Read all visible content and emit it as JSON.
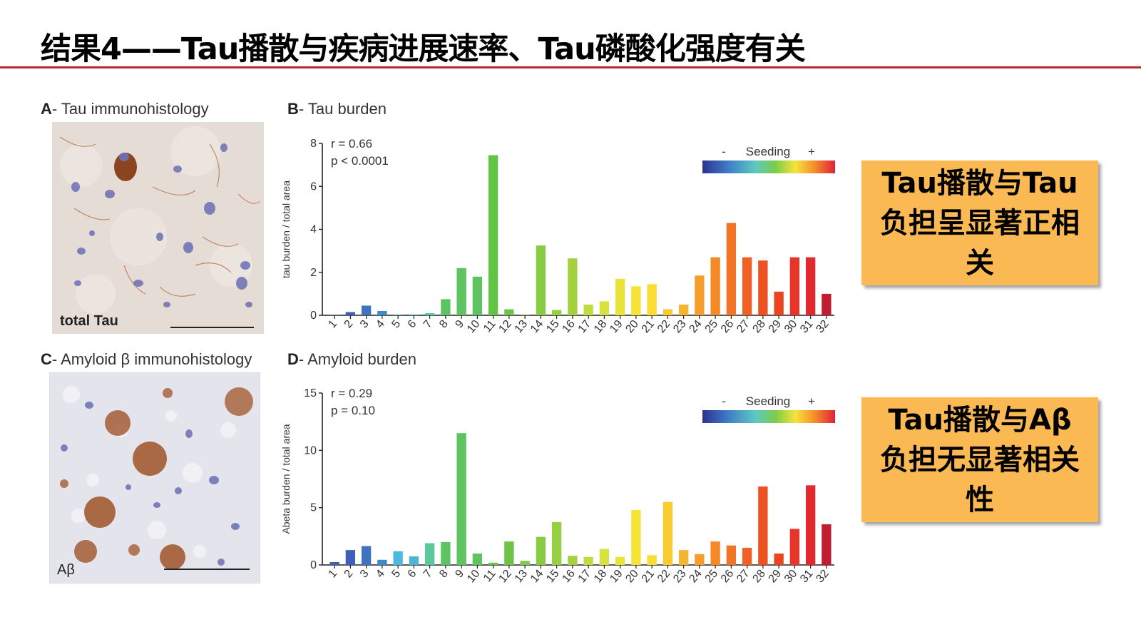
{
  "slide": {
    "title": "结果4——Tau播散与疾病进展速率、Tau磷酸化强度有关"
  },
  "panels": {
    "a": {
      "letter": "A",
      "label": "- Tau immunohistology",
      "overlay": "total Tau"
    },
    "b": {
      "letter": "B",
      "label": "- Tau burden"
    },
    "c": {
      "letter": "C",
      "label": "- Amyloid β immunohistology",
      "overlay": "Aβ"
    },
    "d": {
      "letter": "D",
      "label": "- Amyloid burden"
    }
  },
  "callouts": {
    "tau": "Tau播散与Tau负担呈显著正相关",
    "abeta": "Tau播散与Aβ负担无显著相关性"
  },
  "colors": {
    "title_rule": "#c0242a",
    "callout_fill": "#fbb953"
  },
  "chart_data": [
    {
      "type": "bar",
      "title": "Tau burden",
      "ylabel": "tau burden / total area",
      "xlabel": "",
      "ylim": [
        0,
        8
      ],
      "yticks": [
        "0",
        "2",
        "4",
        "6",
        "8"
      ],
      "stat_r": "r = 0.66",
      "stat_p": "p < 0.0001",
      "legend": {
        "title": "Seeding",
        "minus": "-",
        "plus": "+",
        "placement": "top-right"
      },
      "categories": [
        "1",
        "2",
        "3",
        "4",
        "5",
        "6",
        "7",
        "8",
        "9",
        "10",
        "11",
        "12",
        "13",
        "14",
        "15",
        "16",
        "17",
        "18",
        "19",
        "20",
        "21",
        "22",
        "23",
        "24",
        "25",
        "26",
        "27",
        "28",
        "29",
        "30",
        "31",
        "32"
      ],
      "values": [
        0.02,
        0.15,
        0.45,
        0.2,
        0.02,
        0.04,
        0.1,
        0.75,
        2.2,
        1.8,
        7.45,
        0.28,
        0.02,
        3.25,
        0.25,
        2.65,
        0.5,
        0.65,
        1.7,
        1.35,
        1.45,
        0.28,
        0.5,
        1.85,
        2.7,
        4.3,
        2.7,
        2.55,
        1.1,
        2.7,
        2.7,
        1.0
      ],
      "colors": [
        "#3f60b8",
        "#3f60b8",
        "#3f72bf",
        "#3f89c9",
        "#3f9fd3",
        "#4cb5d6",
        "#5bc8b0",
        "#5ec462",
        "#5ec462",
        "#5ec462",
        "#60c544",
        "#6cc547",
        "#7bc946",
        "#88cc43",
        "#95cf43",
        "#a3d140",
        "#c0dd3f",
        "#d7e23f",
        "#e9e43a",
        "#f5e437",
        "#f9dc34",
        "#f8cb31",
        "#f6b52e",
        "#f59e2b",
        "#f48928",
        "#f27426",
        "#f06224",
        "#ee5222",
        "#eb4421",
        "#e8352a",
        "#e12a30",
        "#be1e2d"
      ]
    },
    {
      "type": "bar",
      "title": "Amyloid burden",
      "ylabel": "Abeta burden / total area",
      "xlabel": "",
      "ylim": [
        0,
        15
      ],
      "yticks": [
        "0",
        "5",
        "10",
        "15"
      ],
      "stat_r": "r = 0.29",
      "stat_p": "p = 0.10",
      "legend": {
        "title": "Seeding",
        "minus": "-",
        "plus": "+",
        "placement": "top-right"
      },
      "categories": [
        "1",
        "2",
        "3",
        "4",
        "5",
        "6",
        "7",
        "8",
        "9",
        "10",
        "11",
        "12",
        "13",
        "14",
        "15",
        "16",
        "17",
        "18",
        "19",
        "20",
        "21",
        "22",
        "23",
        "24",
        "25",
        "26",
        "27",
        "28",
        "29",
        "30",
        "31",
        "32"
      ],
      "values": [
        0.25,
        1.3,
        1.65,
        0.45,
        1.2,
        0.75,
        1.9,
        2.0,
        11.5,
        1.0,
        0.2,
        2.05,
        0.35,
        2.45,
        3.75,
        0.8,
        0.7,
        1.4,
        0.7,
        4.8,
        0.85,
        5.5,
        1.3,
        0.95,
        2.05,
        1.7,
        1.5,
        6.85,
        1.0,
        3.15,
        6.95,
        3.55
      ],
      "colors": [
        "#3f60b8",
        "#3f60b8",
        "#3f72bf",
        "#3f89c9",
        "#4eb9e0",
        "#4cb5d6",
        "#5bc89b",
        "#5ec462",
        "#5ec462",
        "#5ec462",
        "#60c544",
        "#6cc547",
        "#7bc946",
        "#88cc43",
        "#95cf43",
        "#a3d140",
        "#c0dd3f",
        "#d7e23f",
        "#e9e43a",
        "#f5e437",
        "#f9dc34",
        "#f8cb31",
        "#f6b52e",
        "#f59e2b",
        "#f48928",
        "#f27426",
        "#f06224",
        "#ee5222",
        "#eb4421",
        "#e8352a",
        "#e12a30",
        "#be1e2d"
      ]
    }
  ]
}
